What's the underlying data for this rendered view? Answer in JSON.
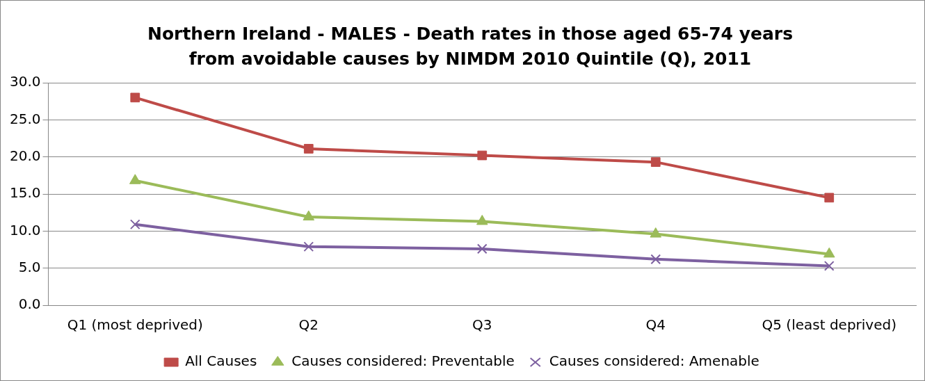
{
  "chart_data": {
    "type": "line",
    "title": "Northern Ireland - MALES - Death rates in those aged 65-74 years from avoidable causes by NIMDM 2010 Quintile (Q), 2011",
    "categories": [
      "Q1 (most deprived)",
      "Q2",
      "Q3",
      "Q4",
      "Q5 (least deprived)"
    ],
    "series": [
      {
        "name": "All Causes",
        "color": "#be4b48",
        "marker": "square",
        "values": [
          28.0,
          21.1,
          20.2,
          19.3,
          14.5
        ]
      },
      {
        "name": "Causes considered: Preventable",
        "color": "#9bbb59",
        "marker": "triangle",
        "values": [
          16.8,
          11.9,
          11.3,
          9.6,
          6.9
        ]
      },
      {
        "name": "Causes considered: Amenable",
        "color": "#7d60a0",
        "marker": "cross",
        "values": [
          10.9,
          7.9,
          7.6,
          6.2,
          5.3
        ]
      }
    ],
    "ylim": [
      0,
      30
    ],
    "yticks": [
      {
        "value": 0,
        "label": "0.0"
      },
      {
        "value": 5,
        "label": "5.0"
      },
      {
        "value": 10,
        "label": "10.0"
      },
      {
        "value": 15,
        "label": "15.0"
      },
      {
        "value": 20,
        "label": "20.0"
      },
      {
        "value": 25,
        "label": "25.0"
      },
      {
        "value": 30,
        "label": "30.0"
      }
    ],
    "grid": "y",
    "legend": "bottom"
  }
}
